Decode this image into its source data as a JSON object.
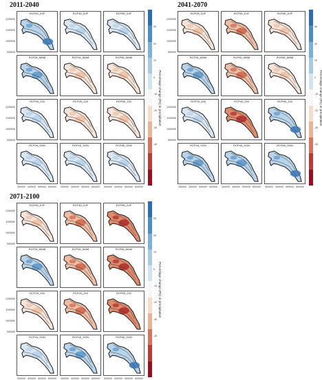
{
  "figures": [
    {
      "period": "2011-2040",
      "panels": [
        {
          "title": "RCP26_DJF",
          "tone": "blue",
          "dark": true
        },
        {
          "title": "RCP45_DJF",
          "tone": "lightblue"
        },
        {
          "title": "RCP85_DJF",
          "tone": "lightblue"
        },
        {
          "title": "RCP26_MAM",
          "tone": "blue"
        },
        {
          "title": "RCP45_MAM",
          "tone": "peach"
        },
        {
          "title": "RCP85_MAM",
          "tone": "peach"
        },
        {
          "title": "RCP26_JJA",
          "tone": "lightblue"
        },
        {
          "title": "RCP45_JJA",
          "tone": "peach"
        },
        {
          "title": "RCP85_JJA",
          "tone": "peach"
        },
        {
          "title": "RCP26_SON",
          "tone": "lightblue"
        },
        {
          "title": "RCP45_SON",
          "tone": "lightblue"
        },
        {
          "title": "RCP85_SON",
          "tone": "lightblue"
        }
      ]
    },
    {
      "period": "2041-2070",
      "panels": [
        {
          "title": "RCP26_DJF",
          "tone": "peach"
        },
        {
          "title": "RCP45_DJF",
          "tone": "red"
        },
        {
          "title": "RCP85_DJF",
          "tone": "peach"
        },
        {
          "title": "RCP26_MAM",
          "tone": "blue"
        },
        {
          "title": "RCP45_MAM",
          "tone": "red"
        },
        {
          "title": "RCP85_MAM",
          "tone": "peach"
        },
        {
          "title": "RCP26_JJA",
          "tone": "lightblue"
        },
        {
          "title": "RCP45_JJA",
          "tone": "darkred"
        },
        {
          "title": "RCP85_JJA",
          "tone": "blue",
          "dark": true
        },
        {
          "title": "RCP26_SON",
          "tone": "blue"
        },
        {
          "title": "RCP45_SON",
          "tone": "blue"
        },
        {
          "title": "RCP85_SON",
          "tone": "blue",
          "dark": true
        }
      ]
    },
    {
      "period": "2071-2100",
      "panels": [
        {
          "title": "RCP26_DJF",
          "tone": "peach"
        },
        {
          "title": "RCP45_DJF",
          "tone": "red"
        },
        {
          "title": "RCP85_DJF",
          "tone": "darkred"
        },
        {
          "title": "RCP26_MAM",
          "tone": "blue"
        },
        {
          "title": "RCP45_MAM",
          "tone": "red"
        },
        {
          "title": "RCP85_MAM",
          "tone": "darkred"
        },
        {
          "title": "RCP26_JJA",
          "tone": "peach"
        },
        {
          "title": "RCP45_JJA",
          "tone": "red"
        },
        {
          "title": "RCP85_JJA",
          "tone": "darkred"
        },
        {
          "title": "RCP26_SON",
          "tone": "lightblue"
        },
        {
          "title": "RCP45_SON",
          "tone": "blue"
        },
        {
          "title": "RCP85_SON",
          "tone": "blue",
          "dark": true
        }
      ]
    }
  ],
  "y_ticks": [
    "1200000",
    "1100000",
    "1000000",
    "900000"
  ],
  "x_ticks": [
    "300000",
    "400000",
    "500000",
    "600000"
  ],
  "colorbar": {
    "title": "Percentage change (PC) in precipitation",
    "ticks": [
      "30",
      "20",
      "10",
      "0",
      "-10",
      "-20",
      "-30",
      "-40"
    ],
    "colors": [
      "#2a6db5",
      "#4b8ec6",
      "#7bb0d8",
      "#a8cbe4",
      "#d3e4f1",
      "#f7f7f7",
      "#f6dccb",
      "#eab395",
      "#d6735a",
      "#bb3a36",
      "#980d20"
    ]
  },
  "tones": {
    "blue": {
      "fill": "#b9d4ea",
      "accent": "#5b97cb"
    },
    "lightblue": {
      "fill": "#d9e7f3",
      "accent": "#b5d0e8"
    },
    "peach": {
      "fill": "#f7e4d8",
      "accent": "#efc0a4"
    },
    "red": {
      "fill": "#eebfa6",
      "accent": "#d1634b"
    },
    "darkred": {
      "fill": "#df8b6e",
      "accent": "#b22a2a"
    }
  }
}
